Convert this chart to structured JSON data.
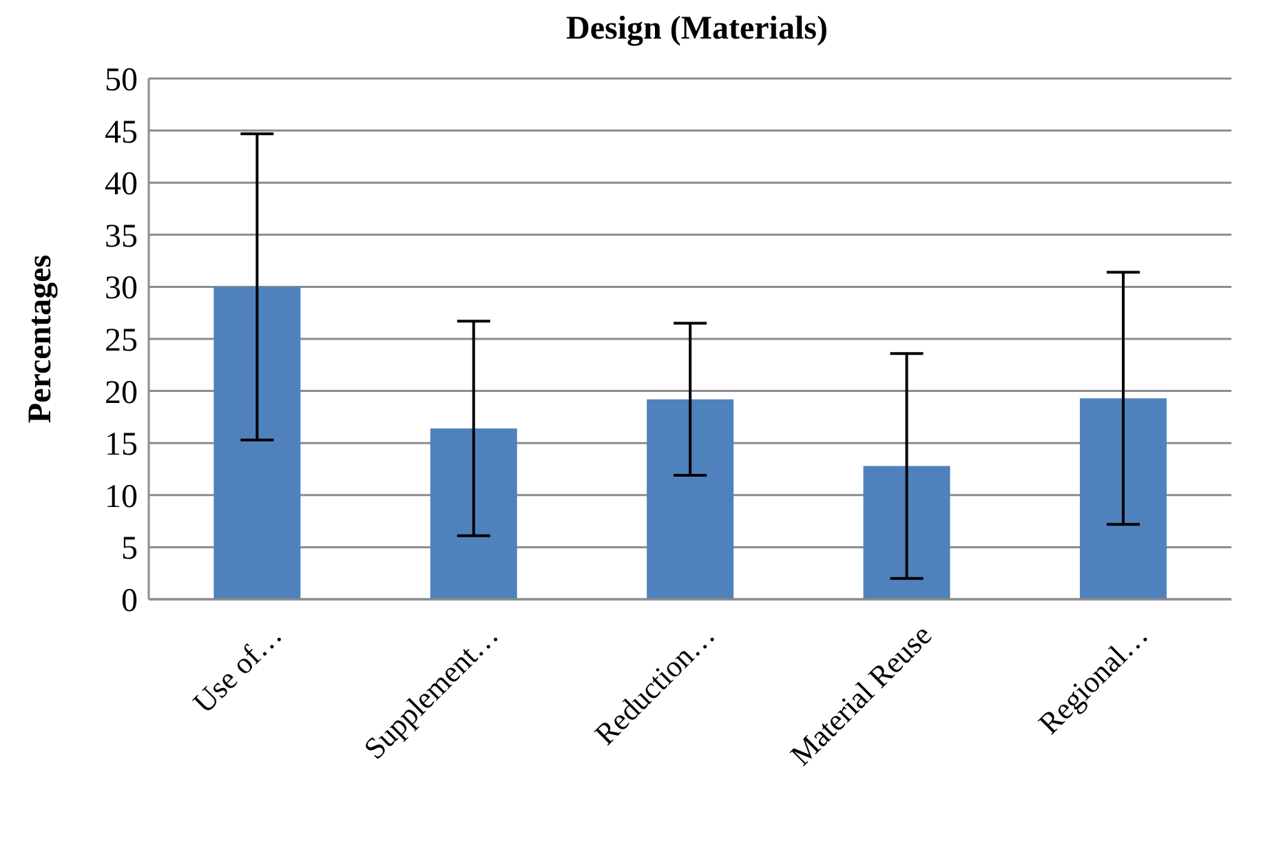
{
  "chart_data": {
    "type": "bar",
    "title": "Design (Materials)",
    "ylabel": "Percentages",
    "categories": [
      "Use of…",
      "Supplement…",
      "Reduction…",
      "Material Reuse",
      "Regional…"
    ],
    "values": [
      30,
      16.4,
      19.2,
      12.8,
      19.3
    ],
    "errors": [
      14.7,
      10.3,
      7.3,
      10.8,
      12.1
    ],
    "color": "#4f81bd",
    "ylim": [
      0,
      50
    ],
    "yticks": [
      0,
      5,
      10,
      15,
      20,
      25,
      30,
      35,
      40,
      45,
      50
    ],
    "grid": "y",
    "legend": false
  }
}
